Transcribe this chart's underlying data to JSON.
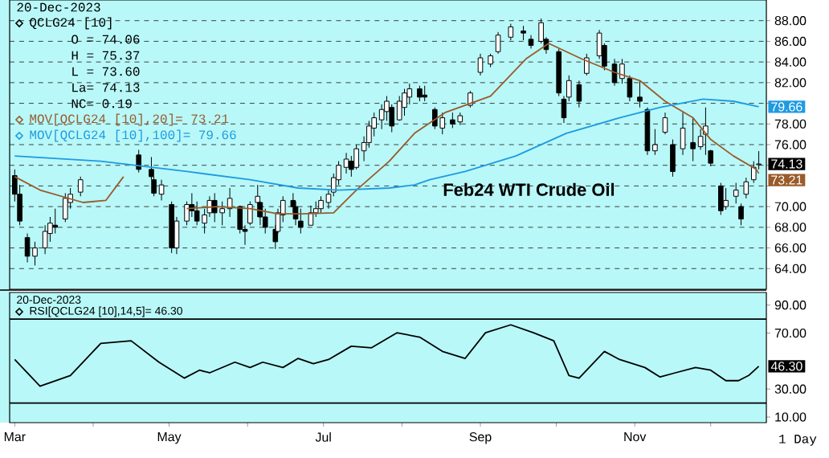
{
  "chart_data": [
    {
      "type": "candlestick",
      "title": "Feb24 WTI Crude Oil",
      "xlim": [
        "2023-02-27",
        "2023-12-23"
      ],
      "ylim": [
        62,
        90
      ],
      "yticks": [
        {
          "value": 64,
          "label": "64.00"
        },
        {
          "value": 66,
          "label": "66.00"
        },
        {
          "value": 68,
          "label": "68.00"
        },
        {
          "value": 70,
          "label": "70.00"
        },
        {
          "value": 72,
          "label": null
        },
        {
          "value": 74,
          "label": null
        },
        {
          "value": 76,
          "label": "76.00"
        },
        {
          "value": 78,
          "label": "78.00"
        },
        {
          "value": 80,
          "label": null
        },
        {
          "value": 82,
          "label": "82.00"
        },
        {
          "value": 84,
          "label": "84.00"
        },
        {
          "value": 86,
          "label": "86.00"
        },
        {
          "value": 88,
          "label": "88.00"
        }
      ],
      "grid": "y",
      "legend": "top left",
      "tick_labels": "y",
      "annotations": [
        "20-Dec-2023",
        "O = 74.06",
        "H = 75.37",
        "L = 73.60",
        "La= 74.13",
        "NC= 0.19",
        {
          "text": "79.66",
          "x": "2023-12-20",
          "y": 79.66
        },
        {
          "text": "74.13",
          "x": "2023-12-20",
          "y": 74.13
        },
        {
          "text": "73.21",
          "x": "2023-12-20",
          "y": 73.21
        }
      ],
      "series": [
        {
          "type": "candlestick",
          "name": "QCLG24 [10]",
          "color": "#000000",
          "x": [
            "2023-03-01",
            "2023-03-03",
            "2023-03-06",
            "2023-03-09",
            "2023-03-13",
            "2023-03-15",
            "2023-03-17",
            "2023-03-21",
            "2023-03-23",
            "2023-03-27",
            "2023-04-19",
            "2023-04-24",
            "2023-04-25",
            "2023-04-28",
            "2023-05-02",
            "2023-05-04",
            "2023-05-08",
            "2023-05-10",
            "2023-05-12",
            "2023-05-15",
            "2023-05-17",
            "2023-05-19",
            "2023-05-22",
            "2023-05-25",
            "2023-05-29",
            "2023-05-31",
            "2023-06-02",
            "2023-06-05",
            "2023-06-06",
            "2023-06-08",
            "2023-06-12",
            "2023-06-13",
            "2023-06-15",
            "2023-06-19",
            "2023-06-20",
            "2023-06-22",
            "2023-06-26",
            "2023-06-28",
            "2023-06-30",
            "2023-07-03",
            "2023-07-05",
            "2023-07-07",
            "2023-07-10",
            "2023-07-12",
            "2023-07-14",
            "2023-07-17",
            "2023-07-19",
            "2023-07-21",
            "2023-07-24",
            "2023-07-26",
            "2023-07-28",
            "2023-07-31",
            "2023-08-02",
            "2023-08-04",
            "2023-08-08",
            "2023-08-10",
            "2023-08-14",
            "2023-08-17",
            "2023-08-21",
            "2023-08-24",
            "2023-08-28",
            "2023-09-01",
            "2023-09-05",
            "2023-09-08",
            "2023-09-13",
            "2023-09-18",
            "2023-09-21",
            "2023-09-25",
            "2023-09-27",
            "2023-10-02",
            "2023-10-04",
            "2023-10-06",
            "2023-10-10",
            "2023-10-13",
            "2023-10-18",
            "2023-10-20",
            "2023-10-24",
            "2023-10-27",
            "2023-10-30",
            "2023-11-03",
            "2023-11-06",
            "2023-11-09",
            "2023-11-13",
            "2023-11-16",
            "2023-11-20",
            "2023-11-24",
            "2023-11-27",
            "2023-11-29",
            "2023-12-01",
            "2023-12-05",
            "2023-12-07",
            "2023-12-11",
            "2023-12-13",
            "2023-12-15",
            "2023-12-18",
            "2023-12-20"
          ],
          "ohlc": [
            [
              73.0,
              73.6,
              70.5,
              71.2
            ],
            [
              71.2,
              72.1,
              68.2,
              68.6
            ],
            [
              67.0,
              67.4,
              64.6,
              65.2
            ],
            [
              65.2,
              66.6,
              64.3,
              66.0
            ],
            [
              66.0,
              68.2,
              65.4,
              67.6
            ],
            [
              67.4,
              69.0,
              66.6,
              68.4
            ],
            [
              68.2,
              69.8,
              67.4,
              68.0
            ],
            [
              68.8,
              71.3,
              68.5,
              70.8
            ],
            [
              70.4,
              71.8,
              69.8,
              71.2
            ],
            [
              71.4,
              72.9,
              71.0,
              72.6
            ],
            [
              75.0,
              75.5,
              73.3,
              73.6
            ],
            [
              73.6,
              74.8,
              72.6,
              72.9
            ],
            [
              72.6,
              72.9,
              71.0,
              71.3
            ],
            [
              71.2,
              72.6,
              70.6,
              72.1
            ],
            [
              70.2,
              70.5,
              65.5,
              66.0
            ],
            [
              66.0,
              69.0,
              65.4,
              68.6
            ],
            [
              68.6,
              70.5,
              68.2,
              70.2
            ],
            [
              70.2,
              71.3,
              69.0,
              69.6
            ],
            [
              69.6,
              70.5,
              68.2,
              68.6
            ],
            [
              68.4,
              69.8,
              67.4,
              69.2
            ],
            [
              69.4,
              71.0,
              69.0,
              70.6
            ],
            [
              70.6,
              71.3,
              68.5,
              69.4
            ],
            [
              69.4,
              70.5,
              68.2,
              69.8
            ],
            [
              69.8,
              71.8,
              69.0,
              70.8
            ],
            [
              70.0,
              70.1,
              67.4,
              67.8
            ],
            [
              67.8,
              68.2,
              66.3,
              67.6
            ],
            [
              68.4,
              70.5,
              68.2,
              70.2
            ],
            [
              70.4,
              72.1,
              69.0,
              71.0
            ],
            [
              70.4,
              70.5,
              68.2,
              69.0
            ],
            [
              69.0,
              69.8,
              67.4,
              68.0
            ],
            [
              67.8,
              68.2,
              65.9,
              66.6
            ],
            [
              67.6,
              69.8,
              67.4,
              69.4
            ],
            [
              69.2,
              71.0,
              68.5,
              70.6
            ],
            [
              70.6,
              71.3,
              69.4,
              70.0
            ],
            [
              70.0,
              70.5,
              68.2,
              68.8
            ],
            [
              68.6,
              69.8,
              67.4,
              68.0
            ],
            [
              68.2,
              70.1,
              68.2,
              69.4
            ],
            [
              69.4,
              70.5,
              69.0,
              69.8
            ],
            [
              69.8,
              71.0,
              69.4,
              70.6
            ],
            [
              70.4,
              71.6,
              69.8,
              71.2
            ],
            [
              71.4,
              73.2,
              71.0,
              72.8
            ],
            [
              72.6,
              74.4,
              72.1,
              74.0
            ],
            [
              73.8,
              75.2,
              73.2,
              74.6
            ],
            [
              74.4,
              74.9,
              72.9,
              73.6
            ],
            [
              73.8,
              76.0,
              73.6,
              75.6
            ],
            [
              75.4,
              76.8,
              74.4,
              76.2
            ],
            [
              76.2,
              78.3,
              75.7,
              77.8
            ],
            [
              77.6,
              79.1,
              76.8,
              78.6
            ],
            [
              78.4,
              79.9,
              77.5,
              79.4
            ],
            [
              79.2,
              80.7,
              78.3,
              80.2
            ],
            [
              79.6,
              79.9,
              77.2,
              77.8
            ],
            [
              78.4,
              80.7,
              78.3,
              80.2
            ],
            [
              79.6,
              81.4,
              78.8,
              81.0
            ],
            [
              80.6,
              81.9,
              79.9,
              81.4
            ],
            [
              81.4,
              81.7,
              80.2,
              80.6
            ],
            [
              80.8,
              81.7,
              80.2,
              80.6
            ],
            [
              79.4,
              79.6,
              77.5,
              77.8
            ],
            [
              77.6,
              79.1,
              77.0,
              78.6
            ],
            [
              78.4,
              79.1,
              77.6,
              78.0
            ],
            [
              78.2,
              79.1,
              77.9,
              78.8
            ],
            [
              79.8,
              81.2,
              79.6,
              81.0
            ],
            [
              83.0,
              84.8,
              82.7,
              84.4
            ],
            [
              83.8,
              84.8,
              83.5,
              84.6
            ],
            [
              85.0,
              86.9,
              84.8,
              86.6
            ],
            [
              86.4,
              87.7,
              86.1,
              87.4
            ],
            [
              87.0,
              87.5,
              86.1,
              86.8
            ],
            [
              86.2,
              86.6,
              85.3,
              85.6
            ],
            [
              86.0,
              88.2,
              85.8,
              87.8
            ],
            [
              86.2,
              86.4,
              84.8,
              85.2
            ],
            [
              85.0,
              85.3,
              80.7,
              81.0
            ],
            [
              80.4,
              80.7,
              78.1,
              78.6
            ],
            [
              80.6,
              82.7,
              80.2,
              82.2
            ],
            [
              81.8,
              82.2,
              79.6,
              80.2
            ],
            [
              82.9,
              84.8,
              82.7,
              84.4
            ],
            [
              84.6,
              87.1,
              84.3,
              86.8
            ],
            [
              85.6,
              85.8,
              83.2,
              83.6
            ],
            [
              83.8,
              84.3,
              81.7,
              82.0
            ],
            [
              82.4,
              84.3,
              81.9,
              83.8
            ],
            [
              82.4,
              82.7,
              80.2,
              80.6
            ],
            [
              80.6,
              82.2,
              79.6,
              80.2
            ],
            [
              79.4,
              79.6,
              75.0,
              75.4
            ],
            [
              75.4,
              77.5,
              75.0,
              76.0
            ],
            [
              77.2,
              79.1,
              77.0,
              78.6
            ],
            [
              76.0,
              76.5,
              72.9,
              73.4
            ],
            [
              75.6,
              79.1,
              75.0,
              77.6
            ],
            [
              76.2,
              78.6,
              74.4,
              75.6
            ],
            [
              75.8,
              77.5,
              75.5,
              76.8
            ],
            [
              77.0,
              79.6,
              75.0,
              77.8
            ],
            [
              75.4,
              75.5,
              73.9,
              74.2
            ],
            [
              72.0,
              72.3,
              69.2,
              69.6
            ],
            [
              70.0,
              71.8,
              69.7,
              70.6
            ],
            [
              71.0,
              72.3,
              70.3,
              71.6
            ],
            [
              70.0,
              70.3,
              68.2,
              68.8
            ],
            [
              71.2,
              72.8,
              70.8,
              72.4
            ],
            [
              72.6,
              74.4,
              72.3,
              73.8
            ],
            [
              74.06,
              75.37,
              73.6,
              74.13
            ]
          ]
        },
        {
          "type": "line",
          "name": "MOV[QCLG24 [10],20]= 73.21",
          "color": "#9a5a2a",
          "x": [
            "2023-03-01",
            "2023-03-11",
            "2023-03-28",
            "2023-04-06",
            "2023-04-13",
            "2023-04-25",
            "2023-05-08",
            "2023-05-20",
            "2023-06-02",
            "2023-06-13",
            "2023-06-23",
            "2023-07-05",
            "2023-07-14",
            "2023-07-27",
            "2023-08-06",
            "2023-08-18",
            "2023-09-05",
            "2023-09-19",
            "2023-09-28",
            "2023-10-11",
            "2023-10-24",
            "2023-11-03",
            "2023-11-13",
            "2023-11-24",
            "2023-12-01",
            "2023-12-10",
            "2023-12-19",
            "2023-12-20"
          ],
          "values": [
            72.9,
            71.6,
            70.4,
            70.6,
            72.9,
            null,
            69.8,
            70.0,
            69.8,
            69.3,
            69.3,
            69.4,
            71.6,
            74.4,
            77.1,
            79.1,
            80.7,
            84.3,
            85.8,
            84.3,
            83.0,
            82.2,
            80.2,
            78.6,
            76.5,
            74.9,
            73.6,
            73.21
          ]
        },
        {
          "type": "line",
          "name": "MOV[QCLG24 [10],100]= 79.66",
          "color": "#1e9be0",
          "x": [
            "2023-03-01",
            "2023-04-04",
            "2023-05-08",
            "2023-06-02",
            "2023-06-21",
            "2023-07-07",
            "2023-07-27",
            "2023-08-06",
            "2023-08-12",
            "2023-08-26",
            "2023-09-15",
            "2023-10-05",
            "2023-10-26",
            "2023-11-11",
            "2023-11-28",
            "2023-12-10",
            "2023-12-20"
          ],
          "values": [
            74.9,
            74.4,
            73.4,
            72.6,
            71.8,
            71.6,
            71.8,
            72.1,
            72.6,
            73.4,
            74.9,
            77.1,
            78.6,
            79.6,
            80.4,
            80.2,
            79.66
          ]
        }
      ]
    },
    {
      "type": "line",
      "xlabel": "1 Day",
      "xlim": [
        "2023-02-27",
        "2023-12-23"
      ],
      "ylim": [
        6,
        99
      ],
      "xticks": [
        {
          "value": "2023-03-01",
          "label": "Mar"
        },
        {
          "value": "2023-04-01",
          "label": null
        },
        {
          "value": "2023-05-01",
          "label": "May"
        },
        {
          "value": "2023-06-01",
          "label": null
        },
        {
          "value": "2023-07-01",
          "label": "Jul"
        },
        {
          "value": "2023-08-01",
          "label": null
        },
        {
          "value": "2023-09-01",
          "label": "Sep"
        },
        {
          "value": "2023-10-01",
          "label": null
        },
        {
          "value": "2023-11-01",
          "label": "Nov"
        },
        {
          "value": "2023-12-01",
          "label": null
        }
      ],
      "yticks": [
        {
          "value": 10,
          "label": "10.00"
        },
        {
          "value": 30,
          "label": "30.00"
        },
        {
          "value": 70,
          "label": "70.00"
        },
        {
          "value": 90,
          "label": "90.00"
        }
      ],
      "ref_lines": [
        {
          "axis": "y",
          "value": 80,
          "color": "#000000"
        },
        {
          "axis": "y",
          "value": 20,
          "color": "#000000"
        }
      ],
      "legend": "top left",
      "annotations": [
        "20-Dec-2023",
        {
          "text": "46.30",
          "x": "2023-12-20",
          "y": 46.3
        }
      ],
      "series": [
        {
          "name": "RSI[QCLG24 [10],14,5]= 46.30",
          "color": "#000000",
          "x": [
            "2023-03-01",
            "2023-03-11",
            "2023-03-23",
            "2023-04-04",
            "2023-04-16",
            "2023-04-27",
            "2023-05-07",
            "2023-05-13",
            "2023-05-17",
            "2023-05-27",
            "2023-06-02",
            "2023-06-07",
            "2023-06-15",
            "2023-06-21",
            "2023-06-27",
            "2023-07-03",
            "2023-07-12",
            "2023-07-20",
            "2023-07-30",
            "2023-08-08",
            "2023-08-17",
            "2023-08-26",
            "2023-09-03",
            "2023-09-13",
            "2023-09-22",
            "2023-09-30",
            "2023-10-06",
            "2023-10-10",
            "2023-10-20",
            "2023-10-26",
            "2023-11-05",
            "2023-11-11",
            "2023-11-17",
            "2023-11-25",
            "2023-12-01",
            "2023-12-07",
            "2023-12-12",
            "2023-12-16",
            "2023-12-20"
          ],
          "values": [
            51.1,
            32.1,
            39.7,
            62.6,
            64.5,
            49.2,
            37.8,
            43.5,
            41.6,
            49.2,
            45.4,
            49.2,
            45.4,
            51.9,
            48.1,
            51.1,
            60.6,
            59.5,
            70.2,
            67.1,
            56.9,
            51.9,
            70.2,
            75.9,
            70.2,
            64.5,
            39.7,
            37.8,
            56.9,
            51.1,
            45.4,
            38.6,
            41.6,
            45.4,
            43.5,
            36.0,
            36.0,
            39.7,
            46.3
          ]
        }
      ]
    }
  ]
}
